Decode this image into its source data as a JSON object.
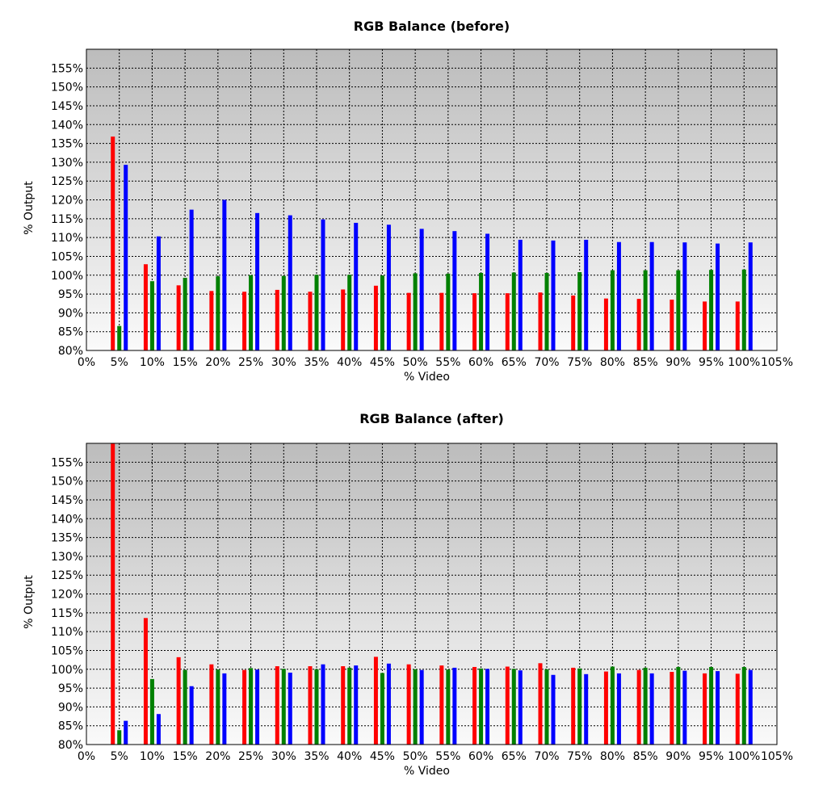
{
  "chart_data": [
    {
      "type": "bar",
      "title": "RGB Balance (before)",
      "xlabel": "% Video",
      "ylabel": "% Output",
      "ylim": [
        80,
        160
      ],
      "xlim": [
        0,
        105
      ],
      "grid": true,
      "yticks": [
        "80%",
        "85%",
        "90%",
        "95%",
        "100%",
        "105%",
        "110%",
        "115%",
        "120%",
        "125%",
        "130%",
        "135%",
        "140%",
        "145%",
        "150%",
        "155%"
      ],
      "xticks": [
        "0%",
        "5%",
        "10%",
        "15%",
        "20%",
        "25%",
        "30%",
        "35%",
        "40%",
        "45%",
        "50%",
        "55%",
        "60%",
        "65%",
        "70%",
        "75%",
        "80%",
        "85%",
        "90%",
        "95%",
        "100%",
        "105%"
      ],
      "x": [
        5,
        10,
        15,
        20,
        25,
        30,
        35,
        40,
        45,
        50,
        55,
        60,
        65,
        70,
        75,
        80,
        85,
        90,
        95,
        100
      ],
      "series": [
        {
          "color": "#ff0000",
          "values": [
            136.8,
            102.9,
            97.3,
            95.8,
            95.6,
            96.1,
            95.6,
            96.2,
            97.2,
            95.3,
            95.3,
            95.2,
            95.2,
            95.4,
            94.6,
            93.8,
            93.7,
            93.5,
            93.0,
            93.0
          ]
        },
        {
          "color": "#008000",
          "values": [
            86.5,
            98.4,
            99.3,
            99.7,
            100.0,
            99.8,
            100.1,
            100.1,
            99.9,
            100.5,
            100.4,
            100.6,
            100.7,
            100.6,
            100.8,
            101.3,
            101.3,
            101.3,
            101.4,
            101.5
          ]
        },
        {
          "color": "#0000ff",
          "values": [
            129.3,
            110.3,
            117.4,
            120.0,
            116.5,
            115.9,
            114.8,
            113.9,
            113.4,
            112.3,
            111.7,
            111.0,
            109.4,
            109.2,
            109.4,
            108.8,
            108.8,
            108.7,
            108.4,
            108.7
          ]
        }
      ]
    },
    {
      "type": "bar",
      "title": "RGB Balance (after)",
      "xlabel": "% Video",
      "ylabel": "% Output",
      "ylim": [
        80,
        160
      ],
      "xlim": [
        0,
        105
      ],
      "grid": true,
      "yticks": [
        "80%",
        "85%",
        "90%",
        "95%",
        "100%",
        "105%",
        "110%",
        "115%",
        "120%",
        "125%",
        "130%",
        "135%",
        "140%",
        "145%",
        "150%",
        "155%"
      ],
      "xticks": [
        "0%",
        "5%",
        "10%",
        "15%",
        "20%",
        "25%",
        "30%",
        "35%",
        "40%",
        "45%",
        "50%",
        "55%",
        "60%",
        "65%",
        "70%",
        "75%",
        "80%",
        "85%",
        "90%",
        "95%",
        "100%",
        "105%"
      ],
      "x": [
        5,
        10,
        15,
        20,
        25,
        30,
        35,
        40,
        45,
        50,
        55,
        60,
        65,
        70,
        75,
        80,
        85,
        90,
        95,
        100
      ],
      "series": [
        {
          "color": "#ff0000",
          "values": [
            160.0,
            113.6,
            103.2,
            101.3,
            99.8,
            100.8,
            100.8,
            100.8,
            103.3,
            101.3,
            101.0,
            100.6,
            100.7,
            101.6,
            100.4,
            99.4,
            99.8,
            99.3,
            98.9,
            98.8
          ]
        },
        {
          "color": "#008000",
          "values": [
            83.8,
            97.4,
            99.8,
            99.9,
            100.3,
            100.1,
            100.0,
            100.4,
            99.0,
            100.0,
            99.9,
            100.2,
            100.1,
            100.0,
            100.2,
            100.7,
            100.4,
            100.6,
            100.6,
            100.6
          ]
        },
        {
          "color": "#0000ff",
          "values": [
            86.3,
            88.1,
            95.5,
            98.9,
            99.9,
            99.1,
            101.3,
            101.0,
            101.5,
            99.8,
            100.4,
            100.1,
            99.7,
            98.5,
            98.7,
            98.9,
            98.9,
            99.6,
            99.5,
            99.8
          ]
        }
      ]
    }
  ]
}
